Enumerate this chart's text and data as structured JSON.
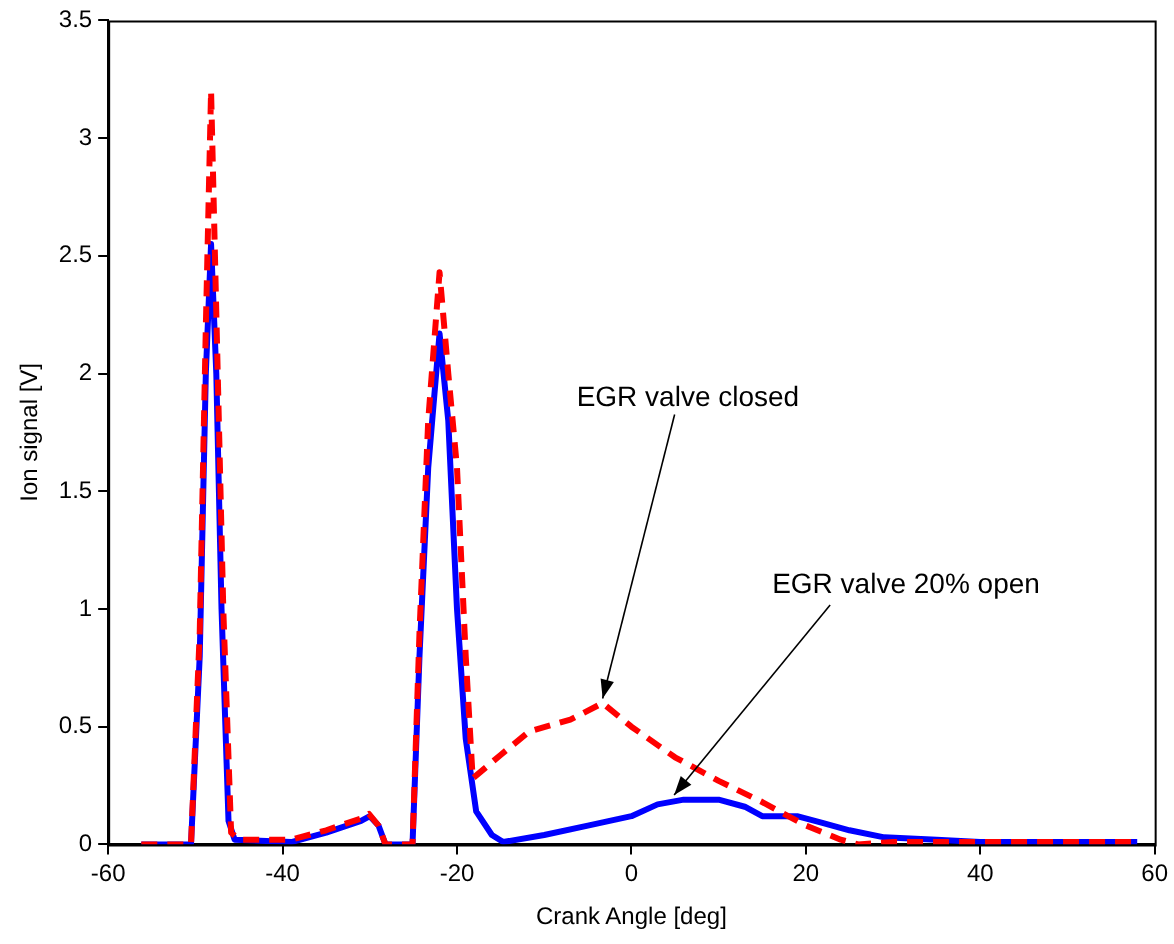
{
  "chart_data": {
    "type": "line",
    "xlabel": "Crank Angle [deg]",
    "ylabel": "Ion signal [V]",
    "xlim": [
      -60,
      60
    ],
    "xticks": [
      -60,
      -40,
      -20,
      0,
      20,
      40,
      60
    ],
    "ylim": [
      0,
      3.5
    ],
    "yticks": [
      0,
      0.5,
      1,
      1.5,
      2,
      2.5,
      3,
      3.5
    ],
    "grid": false,
    "legend": false,
    "marker": "none",
    "series": [
      {
        "color": "#0000ff",
        "line_style": "solid",
        "x": [
          -56.2,
          -50.5,
          -49.5,
          -48.8,
          -48.2,
          -47.6,
          -47,
          -46.2,
          -45.5,
          -39,
          -35,
          -31,
          -30,
          -29,
          -28.2,
          -25.1,
          -24.3,
          -23.3,
          -22,
          -21,
          -20,
          -19,
          -17.8,
          -16,
          -14.7,
          -10,
          -5,
          0,
          3,
          6,
          10,
          13,
          15,
          19,
          22,
          25,
          29,
          35,
          40,
          58
        ],
        "values": [
          0,
          0,
          0.8,
          2.0,
          2.55,
          2.0,
          1.0,
          0.1,
          0.02,
          0.01,
          0.05,
          0.1,
          0.12,
          0.08,
          0,
          0,
          0.8,
          1.6,
          2.17,
          1.8,
          1.0,
          0.45,
          0.14,
          0.04,
          0.01,
          0.04,
          0.08,
          0.12,
          0.17,
          0.19,
          0.19,
          0.16,
          0.12,
          0.12,
          0.09,
          0.06,
          0.03,
          0.02,
          0.01,
          0.01
        ]
      },
      {
        "color": "#ff0000",
        "line_style": "dashed",
        "x": [
          -56.2,
          -50.5,
          -49.5,
          -48.8,
          -48.2,
          -47.5,
          -46.8,
          -45.9,
          -45,
          -39,
          -35,
          -31,
          -30.1,
          -29,
          -28.2,
          -25.1,
          -24.3,
          -23.3,
          -22,
          -21,
          -20,
          -19,
          -18.2,
          -15,
          -11.7,
          -7,
          -3.3,
          0,
          5,
          10,
          15,
          20,
          24,
          26,
          30,
          58
        ],
        "values": [
          0,
          0,
          0.9,
          2.2,
          3.2,
          2.1,
          1.0,
          0.05,
          0.02,
          0.02,
          0.06,
          0.11,
          0.13,
          0.08,
          0,
          0,
          0.9,
          1.8,
          2.43,
          2.0,
          1.6,
          0.8,
          0.28,
          0.38,
          0.48,
          0.53,
          0.6,
          0.5,
          0.37,
          0.27,
          0.18,
          0.08,
          0.02,
          0,
          0.01,
          0.01
        ]
      }
    ],
    "annotations": [
      {
        "text": "EGR valve closed",
        "x": -3.3,
        "y": 0.62
      },
      {
        "text": "EGR valve 20% open",
        "x": 4.9,
        "y": 0.21
      }
    ]
  }
}
